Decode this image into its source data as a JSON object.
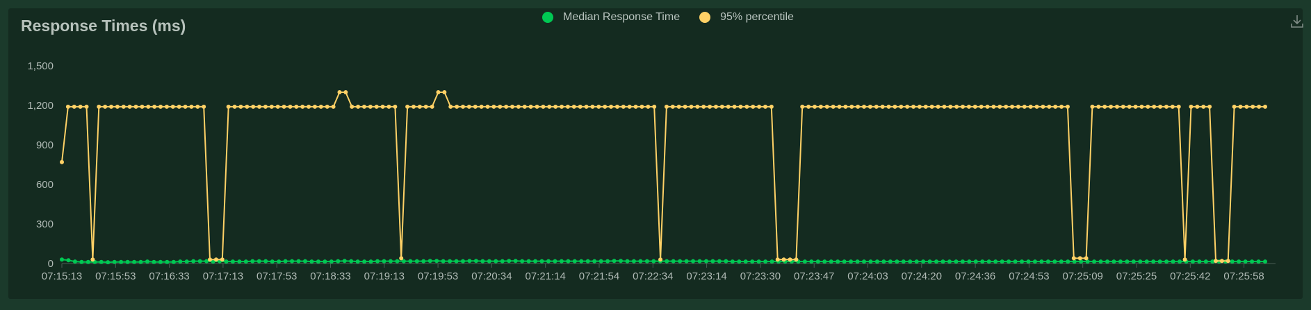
{
  "title": "Response Times (ms)",
  "legend": [
    {
      "label": "Median Response Time",
      "color": "#00c853"
    },
    {
      "label": "95% percentile",
      "color": "#ffd166"
    }
  ],
  "download_icon": "download-icon",
  "chart_data": {
    "type": "line",
    "title": "Response Times (ms)",
    "ylim": [
      0,
      1500
    ],
    "y_ticks": [
      "0",
      "300",
      "600",
      "900",
      "1,200",
      "1,500"
    ],
    "x_tick_labels": [
      "07:15:13",
      "07:15:53",
      "07:16:33",
      "07:17:13",
      "07:17:53",
      "07:18:33",
      "07:19:13",
      "07:19:53",
      "07:20:34",
      "07:21:14",
      "07:21:54",
      "07:22:34",
      "07:23:14",
      "07:23:30",
      "07:23:47",
      "07:24:03",
      "07:24:20",
      "07:24:36",
      "07:24:53",
      "07:25:09",
      "07:25:25",
      "07:25:42",
      "07:25:58"
    ],
    "grid": false,
    "legend_position": "top-center",
    "series": [
      {
        "name": "Median Response Time",
        "color": "#00c853",
        "values": [
          30,
          25,
          15,
          12,
          12,
          12,
          12,
          10,
          12,
          12,
          12,
          12,
          12,
          15,
          12,
          12,
          12,
          12,
          15,
          15,
          18,
          18,
          18,
          15,
          18,
          15,
          15,
          15,
          15,
          18,
          18,
          18,
          15,
          15,
          18,
          18,
          18,
          18,
          15,
          15,
          15,
          15,
          18,
          20,
          18,
          15,
          15,
          15,
          18,
          18,
          18,
          18,
          18,
          18,
          18,
          18,
          20,
          20,
          18,
          18,
          18,
          18,
          20,
          20,
          18,
          18,
          18,
          18,
          20,
          20,
          18,
          18,
          18,
          18,
          18,
          18,
          18,
          18,
          18,
          18,
          18,
          18,
          18,
          18,
          20,
          20,
          18,
          18,
          18,
          18,
          18,
          18,
          18,
          18,
          18,
          18,
          18,
          18,
          18,
          18,
          18,
          18,
          15,
          15,
          15,
          15,
          15,
          15,
          15,
          15,
          15,
          15,
          15,
          15,
          15,
          15,
          15,
          15,
          15,
          15,
          15,
          15,
          15,
          15,
          15,
          15,
          15,
          15,
          15,
          15,
          15,
          15,
          15,
          15,
          15,
          15,
          15,
          15,
          15,
          15,
          15,
          15,
          15,
          15,
          15,
          15,
          15,
          15,
          15,
          15,
          15,
          15,
          15,
          15,
          15,
          15,
          15,
          15,
          15,
          15,
          15,
          15,
          15,
          15,
          15,
          15,
          15,
          15,
          15,
          15,
          15,
          15,
          15,
          15,
          15,
          15,
          15,
          15,
          15,
          15,
          15,
          15,
          15,
          15
        ]
      },
      {
        "name": "95% percentile",
        "color": "#ffd166",
        "values": [
          770,
          1190,
          1190,
          1190,
          1190,
          30,
          1190,
          1190,
          1190,
          1190,
          1190,
          1190,
          1190,
          1190,
          1190,
          1190,
          1190,
          1190,
          1190,
          1190,
          1190,
          1190,
          1190,
          1190,
          30,
          30,
          30,
          1190,
          1190,
          1190,
          1190,
          1190,
          1190,
          1190,
          1190,
          1190,
          1190,
          1190,
          1190,
          1190,
          1190,
          1190,
          1190,
          1190,
          1190,
          1300,
          1300,
          1190,
          1190,
          1190,
          1190,
          1190,
          1190,
          1190,
          1190,
          40,
          1190,
          1190,
          1190,
          1190,
          1190,
          1300,
          1300,
          1190,
          1190,
          1190,
          1190,
          1190,
          1190,
          1190,
          1190,
          1190,
          1190,
          1190,
          1190,
          1190,
          1190,
          1190,
          1190,
          1190,
          1190,
          1190,
          1190,
          1190,
          1190,
          1190,
          1190,
          1190,
          1190,
          1190,
          1190,
          1190,
          1190,
          1190,
          1190,
          1190,
          1190,
          30,
          1190,
          1190,
          1190,
          1190,
          1190,
          1190,
          1190,
          1190,
          1190,
          1190,
          1190,
          1190,
          1190,
          1190,
          1190,
          1190,
          1190,
          1190,
          30,
          30,
          30,
          30,
          1190,
          1190,
          1190,
          1190,
          1190,
          1190,
          1190,
          1190,
          1190,
          1190,
          1190,
          1190,
          1190,
          1190,
          1190,
          1190,
          1190,
          1190,
          1190,
          1190,
          1190,
          1190,
          1190,
          1190,
          1190,
          1190,
          1190,
          1190,
          1190,
          1190,
          1190,
          1190,
          1190,
          1190,
          1190,
          1190,
          1190,
          1190,
          1190,
          1190,
          1190,
          1190,
          1190,
          1190,
          40,
          40,
          40,
          1190,
          1190,
          1190,
          1190,
          1190,
          1190,
          1190,
          1190,
          1190,
          1190,
          1190,
          1190,
          1190,
          1190,
          1190,
          30,
          1190,
          1190,
          1190,
          1190,
          20,
          20,
          20,
          1190,
          1190,
          1190,
          1190,
          1190,
          1190
        ]
      }
    ]
  }
}
